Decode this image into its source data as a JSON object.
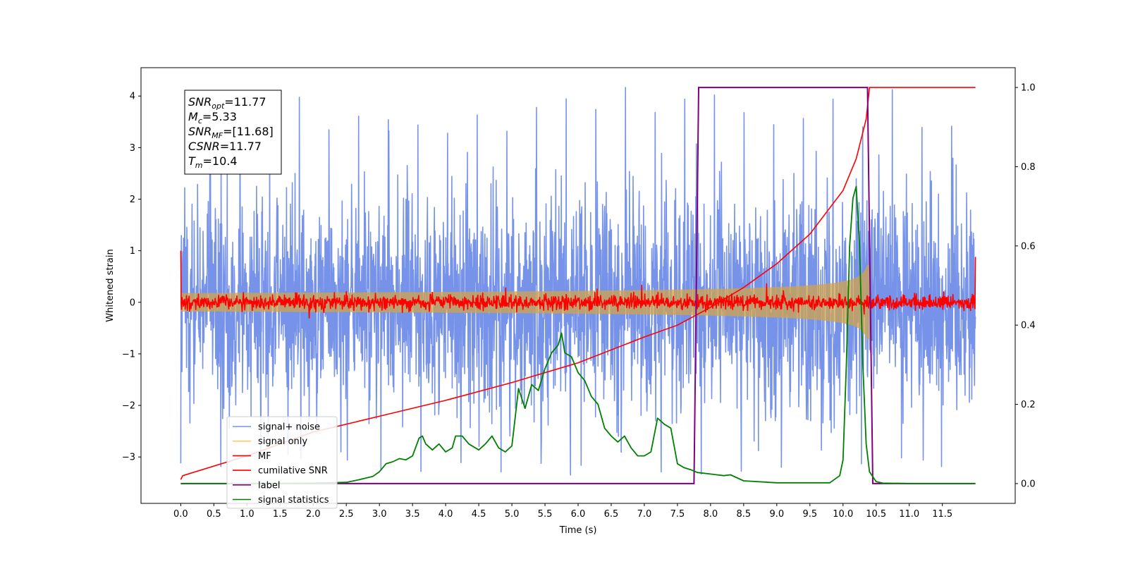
{
  "chart_data": {
    "type": "line",
    "xlabel": "Time (s)",
    "ylabel": "Whitened strain",
    "xlim": [
      -0.6,
      12.6
    ],
    "ylim": [
      -3.9,
      4.55
    ],
    "y2lim": [
      -0.05,
      1.05
    ],
    "x_ticks": [
      "0.0",
      "0.5",
      "1.0",
      "1.5",
      "2.0",
      "2.5",
      "3.0",
      "3.5",
      "4.0",
      "4.5",
      "5.0",
      "5.5",
      "6.0",
      "6.5",
      "7.0",
      "7.5",
      "8.0",
      "8.5",
      "9.0",
      "9.5",
      "10.0",
      "10.5",
      "11.0",
      "11.5"
    ],
    "y_ticks": [
      "−3",
      "−2",
      "−1",
      "0",
      "1",
      "2",
      "3",
      "4"
    ],
    "y2_ticks": [
      "0.0",
      "0.2",
      "0.4",
      "0.6",
      "0.8",
      "1.0"
    ],
    "annotation": [
      {
        "sym": "SNR",
        "sub": "opt",
        "val": "=11.77"
      },
      {
        "sym": "M",
        "sub": "c",
        "val": "=5.33"
      },
      {
        "sym": "SNR",
        "sub": "MF",
        "val": "=[11.68]"
      },
      {
        "sym": "CSNR",
        "sub": "",
        "val": "=11.77"
      },
      {
        "sym": "T",
        "sub": "m",
        "val": "=10.4"
      }
    ],
    "merger_time": 10.4,
    "noise_amplitude": 1.05,
    "noise_max": 4.17,
    "noise_min": -3.35,
    "signal_envelope_max": 0.72,
    "mf_noise_amplitude": 0.07,
    "mf_start": 1.0,
    "mf_end": 0.88,
    "series": [
      {
        "name": "signal+ noise",
        "color": "#4169e1",
        "axis": "left"
      },
      {
        "name": "signal only",
        "color": "#ffa500",
        "axis": "left"
      },
      {
        "name": "MF",
        "color": "#ff0000",
        "axis": "left"
      },
      {
        "name": "cumilative SNR",
        "color": "#ff0000",
        "axis": "right",
        "x": [
          0.0,
          0.03,
          1.0,
          2.0,
          3.0,
          4.0,
          5.0,
          6.0,
          7.0,
          7.5,
          8.0,
          8.5,
          9.0,
          9.5,
          10.0,
          10.2,
          10.35,
          10.4,
          12.0
        ],
        "y": [
          0.01,
          0.02,
          0.07,
          0.13,
          0.17,
          0.21,
          0.255,
          0.305,
          0.37,
          0.4,
          0.445,
          0.495,
          0.555,
          0.63,
          0.74,
          0.82,
          0.92,
          1.0,
          1.0
        ]
      },
      {
        "name": "label",
        "color": "#800080",
        "axis": "right",
        "x": [
          0.0,
          7.75,
          7.82,
          10.37,
          10.45,
          12.0
        ],
        "y": [
          0.0,
          0.0,
          1.0,
          1.0,
          0.0,
          0.0
        ]
      },
      {
        "name": "signal statistics",
        "color": "#008000",
        "axis": "right",
        "x": [
          0.0,
          1.0,
          2.0,
          2.5,
          2.7,
          2.9,
          3.0,
          3.1,
          3.2,
          3.3,
          3.4,
          3.5,
          3.6,
          3.65,
          3.7,
          3.8,
          3.9,
          4.0,
          4.1,
          4.15,
          4.25,
          4.35,
          4.5,
          4.6,
          4.7,
          4.8,
          4.9,
          5.0,
          5.1,
          5.2,
          5.3,
          5.4,
          5.5,
          5.6,
          5.7,
          5.75,
          5.8,
          5.9,
          6.0,
          6.1,
          6.2,
          6.3,
          6.4,
          6.5,
          6.6,
          6.7,
          6.8,
          6.9,
          7.0,
          7.1,
          7.2,
          7.3,
          7.4,
          7.5,
          7.6,
          7.7,
          7.8,
          8.0,
          8.2,
          8.3,
          8.5,
          9.0,
          9.5,
          9.8,
          9.95,
          10.0,
          10.05,
          10.1,
          10.15,
          10.2,
          10.25,
          10.3,
          10.35,
          10.4,
          10.5,
          10.6,
          11.0,
          12.0
        ],
        "y": [
          0.0,
          0.0,
          0.001,
          0.003,
          0.01,
          0.018,
          0.03,
          0.05,
          0.055,
          0.063,
          0.06,
          0.07,
          0.115,
          0.12,
          0.1,
          0.085,
          0.1,
          0.08,
          0.09,
          0.12,
          0.12,
          0.1,
          0.085,
          0.1,
          0.12,
          0.09,
          0.08,
          0.095,
          0.24,
          0.19,
          0.25,
          0.235,
          0.29,
          0.33,
          0.35,
          0.38,
          0.33,
          0.32,
          0.28,
          0.26,
          0.22,
          0.2,
          0.14,
          0.12,
          0.105,
          0.12,
          0.09,
          0.07,
          0.07,
          0.08,
          0.165,
          0.15,
          0.14,
          0.05,
          0.04,
          0.035,
          0.028,
          0.024,
          0.02,
          0.022,
          0.007,
          0.002,
          0.002,
          0.002,
          0.02,
          0.06,
          0.3,
          0.6,
          0.72,
          0.75,
          0.6,
          0.3,
          0.1,
          0.03,
          0.005,
          0.001,
          0.0,
          0.0
        ]
      }
    ],
    "legend": {
      "location": "lower-left",
      "entries": [
        "signal+ noise",
        "signal only",
        "MF",
        "cumilative SNR",
        "label",
        "signal statistics"
      ]
    },
    "grid": false
  }
}
